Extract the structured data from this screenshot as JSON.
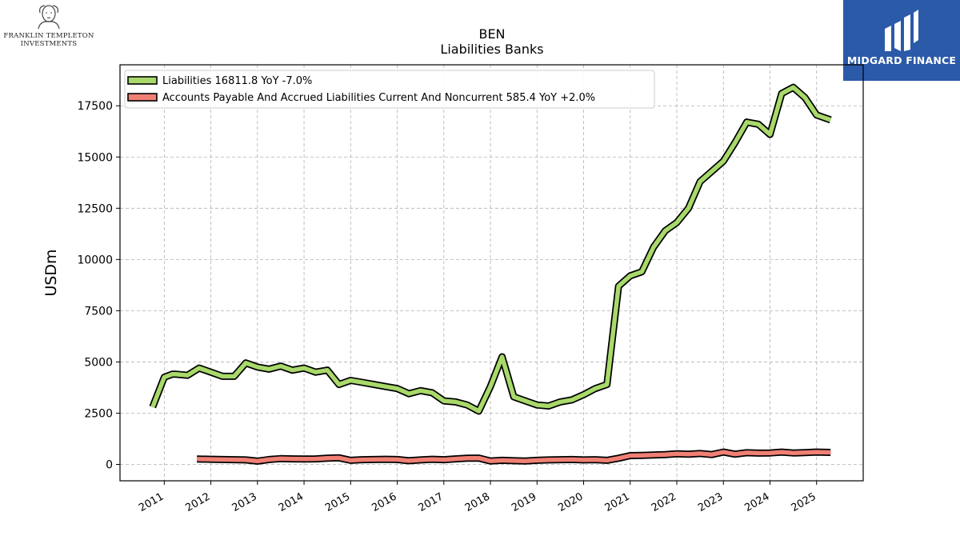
{
  "logos": {
    "left_line1": "FRANKLIN TEMPLETON",
    "left_line2": "INVESTMENTS",
    "right_brand": "MIDGARD FINANCE",
    "left_icon": "portrait-icon",
    "right_icon": "midgard-mark-icon"
  },
  "chart_data": {
    "type": "line",
    "title": "BEN",
    "subtitle": "Liabilities Banks",
    "ylabel": "USDm",
    "xlabel": "",
    "ylim": [
      -800,
      19500
    ],
    "xlim": [
      2010.05,
      2026.0
    ],
    "yticks": [
      0,
      2500,
      5000,
      7500,
      10000,
      12500,
      15000,
      17500
    ],
    "ytick_labels": [
      "0",
      "2500",
      "5000",
      "7500",
      "10000",
      "12500",
      "15000",
      "17500"
    ],
    "xticks": [
      2011,
      2012,
      2013,
      2014,
      2015,
      2016,
      2017,
      2018,
      2019,
      2020,
      2021,
      2022,
      2023,
      2024,
      2025
    ],
    "xtick_labels": [
      "2011",
      "2012",
      "2013",
      "2014",
      "2015",
      "2016",
      "2017",
      "2018",
      "2019",
      "2020",
      "2021",
      "2022",
      "2023",
      "2024",
      "2025"
    ],
    "grid": true,
    "legend_position": "top-left",
    "series": [
      {
        "name": "Liabilities",
        "legend_value": "16811.8",
        "legend_yoy": "YoY -7.0%",
        "color": "#a8d96a",
        "x": [
          2010.75,
          2011.0,
          2011.17,
          2011.25,
          2011.5,
          2011.75,
          2012.0,
          2012.25,
          2012.5,
          2012.75,
          2013.0,
          2013.25,
          2013.5,
          2013.75,
          2014.0,
          2014.25,
          2014.5,
          2014.75,
          2015.0,
          2015.25,
          2015.5,
          2015.75,
          2016.0,
          2016.25,
          2016.5,
          2016.75,
          2017.0,
          2017.25,
          2017.5,
          2017.75,
          2018.0,
          2018.25,
          2018.5,
          2018.75,
          2019.0,
          2019.25,
          2019.5,
          2019.75,
          2020.0,
          2020.25,
          2020.5,
          2020.75,
          2021.0,
          2021.25,
          2021.5,
          2021.75,
          2022.0,
          2022.25,
          2022.5,
          2022.75,
          2023.0,
          2023.25,
          2023.5,
          2023.75,
          2024.0,
          2024.25,
          2024.5,
          2024.75,
          2025.0,
          2025.3
        ],
        "values": [
          2800,
          4250,
          4400,
          4400,
          4350,
          4700,
          4500,
          4300,
          4300,
          4950,
          4750,
          4650,
          4800,
          4600,
          4700,
          4500,
          4600,
          3900,
          4100,
          4000,
          3900,
          3800,
          3700,
          3450,
          3600,
          3500,
          3100,
          3050,
          2900,
          2600,
          3800,
          5250,
          3300,
          3100,
          2900,
          2850,
          3050,
          3150,
          3400,
          3700,
          3900,
          8700,
          9200,
          9400,
          10600,
          11400,
          11800,
          12500,
          13800,
          14300,
          14800,
          15700,
          16700,
          16600,
          16100,
          18100,
          18400,
          17900,
          17050,
          16811.8
        ]
      },
      {
        "name": "Accounts Payable And Accrued Liabilities Current And Noncurrent",
        "legend_value": "585.4",
        "legend_yoy": "YoY +2.0%",
        "color": "#f07f74",
        "x": [
          2011.7,
          2012.0,
          2012.25,
          2012.5,
          2012.75,
          2013.0,
          2013.25,
          2013.5,
          2013.75,
          2014.0,
          2014.25,
          2014.5,
          2014.75,
          2015.0,
          2015.25,
          2015.5,
          2015.75,
          2016.0,
          2016.25,
          2016.5,
          2016.75,
          2017.0,
          2017.25,
          2017.5,
          2017.75,
          2018.0,
          2018.25,
          2018.5,
          2018.75,
          2019.0,
          2019.25,
          2019.5,
          2019.75,
          2020.0,
          2020.25,
          2020.5,
          2020.75,
          2021.0,
          2021.25,
          2021.5,
          2021.75,
          2022.0,
          2022.25,
          2022.5,
          2022.75,
          2023.0,
          2023.25,
          2023.5,
          2023.75,
          2024.0,
          2024.25,
          2024.5,
          2024.75,
          2025.0,
          2025.3
        ],
        "values": [
          260,
          250,
          240,
          230,
          220,
          160,
          240,
          280,
          270,
          260,
          270,
          300,
          320,
          200,
          230,
          240,
          250,
          240,
          180,
          220,
          250,
          230,
          270,
          300,
          310,
          170,
          200,
          180,
          170,
          200,
          220,
          230,
          240,
          220,
          230,
          200,
          300,
          430,
          440,
          460,
          480,
          520,
          500,
          530,
          480,
          600,
          500,
          570,
          550,
          560,
          600,
          560,
          580,
          600,
          585.4
        ]
      }
    ]
  }
}
